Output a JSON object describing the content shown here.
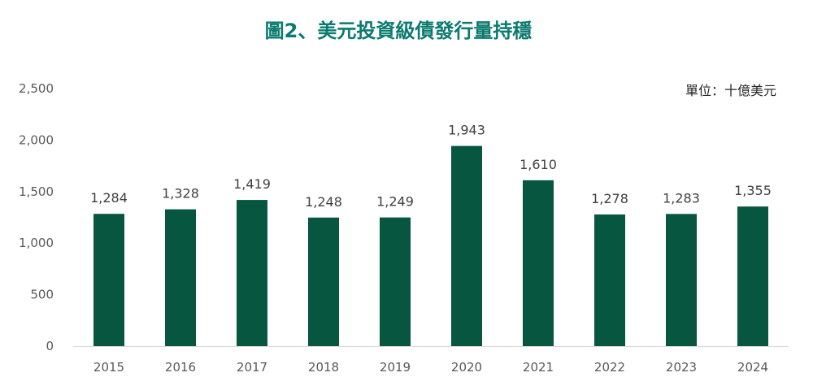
{
  "colors": {
    "title": "#0b7a6f",
    "bar": "#07563f",
    "axis": "#d9d9d9"
  },
  "chart_data": {
    "type": "bar",
    "title": "圖2、美元投資級債發行量持穩",
    "unit_label": "單位：十億美元",
    "categories": [
      "2015",
      "2016",
      "2017",
      "2018",
      "2019",
      "2020",
      "2021",
      "2022",
      "2023",
      "2024"
    ],
    "values": [
      1284,
      1328,
      1419,
      1248,
      1249,
      1943,
      1610,
      1278,
      1283,
      1355
    ],
    "data_labels": [
      "1,284",
      "1,328",
      "1,419",
      "1,248",
      "1,249",
      "1,943",
      "1,610",
      "1,278",
      "1,283",
      "1,355"
    ],
    "yticks": [
      "0",
      "500",
      "1,000",
      "1,500",
      "2,000",
      "2,500"
    ],
    "ylim": [
      0,
      2500
    ],
    "grid": false,
    "legend": "none"
  }
}
